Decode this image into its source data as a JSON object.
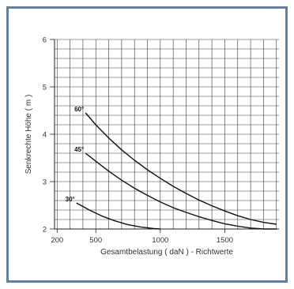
{
  "chart_data": {
    "type": "line",
    "xlabel": "Gesamtbelastung ( daN ) - Richtwerte",
    "ylabel": "Senkrechte Höhe ( m )",
    "xlim": [
      180,
      1920
    ],
    "ylim": [
      2,
      6
    ],
    "x_ticks": [
      200,
      500,
      1000,
      1500
    ],
    "y_ticks": [
      2,
      3,
      4,
      5,
      6
    ],
    "grid": true,
    "series": [
      {
        "name": "60°",
        "x": [
          420,
          500,
          600,
          700,
          800,
          900,
          1000,
          1100,
          1200,
          1300,
          1400,
          1500,
          1600,
          1700,
          1800,
          1900
        ],
        "y": [
          4.45,
          4.2,
          3.92,
          3.67,
          3.45,
          3.25,
          3.07,
          2.9,
          2.75,
          2.61,
          2.49,
          2.38,
          2.28,
          2.2,
          2.14,
          2.1
        ]
      },
      {
        "name": "45°",
        "x": [
          420,
          500,
          600,
          700,
          800,
          900,
          1000,
          1100,
          1200,
          1300,
          1400,
          1500,
          1600,
          1700,
          1800,
          1900
        ],
        "y": [
          3.6,
          3.43,
          3.22,
          3.03,
          2.86,
          2.71,
          2.57,
          2.45,
          2.35,
          2.26,
          2.18,
          2.11,
          2.06,
          2.02,
          2.0,
          1.98
        ]
      },
      {
        "name": "30°",
        "x": [
          350,
          450,
          550,
          650,
          750,
          850,
          950,
          1000
        ],
        "y": [
          2.55,
          2.4,
          2.27,
          2.17,
          2.09,
          2.04,
          2.01,
          2.0
        ]
      }
    ]
  }
}
